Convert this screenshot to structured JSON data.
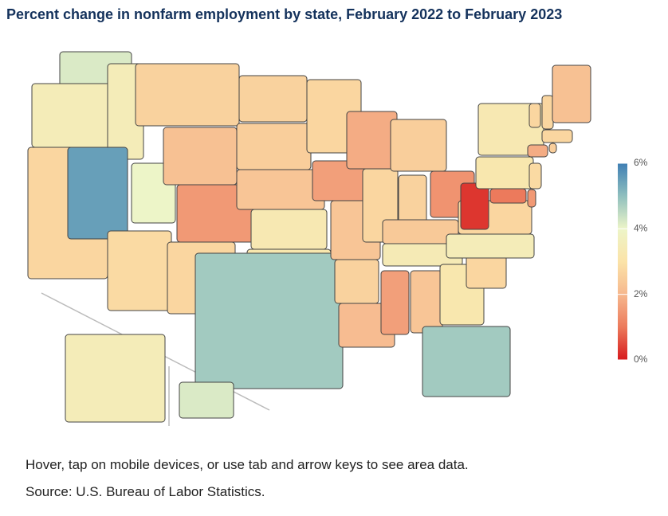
{
  "title": "Percent change in nonfarm employment by state, February 2022 to February 2023",
  "note": "Hover, tap on mobile devices, or use tab and arrow keys to see area data.",
  "source": "Source: U.S. Bureau of Labor Statistics.",
  "map": {
    "values": [
      4.2,
      3.5,
      2.7,
      3.5,
      5.5,
      4.0,
      2.8,
      2.6,
      2.2,
      1.5,
      2.7,
      2.6,
      2.5,
      2.3,
      3.3,
      3.2,
      4.8,
      2.7,
      1.6,
      2.3,
      2.6,
      2.1,
      1.8,
      2.7,
      2.5,
      2.6,
      1.4,
      2.4,
      3.4,
      1.6,
      2.3,
      3.2,
      4.8,
      2.7,
      3.5,
      2.7,
      0.3,
      3.2,
      3.3,
      1.0,
      1.5,
      2.8,
      1.8,
      2.5,
      2.7,
      2.7,
      2.7,
      2.2,
      3.5,
      4.2
    ],
    "color_scale": {
      "range": [
        0,
        6
      ],
      "stops": [
        0,
        1,
        2,
        3,
        4,
        5,
        6
      ],
      "colors": [
        "#d7191c",
        "#ec7a5c",
        "#f6b88e",
        "#fbe3a8",
        "#edf5c8",
        "#8fbfbe",
        "#3f7fb4"
      ],
      "ticks": [
        {
          "value": 0,
          "label": "0%"
        },
        {
          "value": 2,
          "label": "2%"
        },
        {
          "value": 4,
          "label": "4%"
        },
        {
          "value": 6,
          "label": "6%"
        }
      ]
    }
  }
}
